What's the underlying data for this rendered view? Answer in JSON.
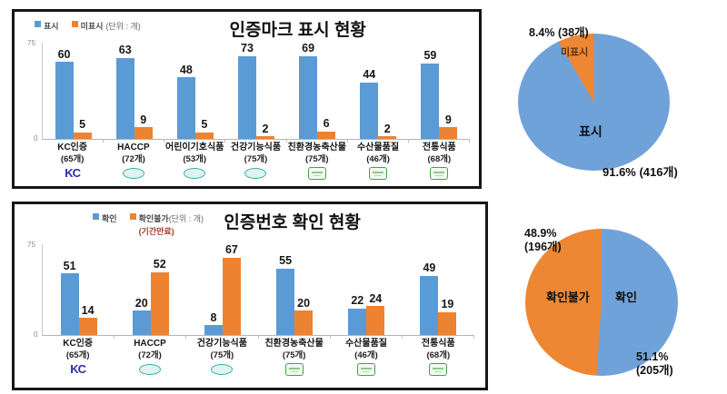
{
  "chart_data": [
    {
      "id": "cert_mark_display_bar",
      "type": "bar",
      "title": "인증마크 표시 현황",
      "unit": "(단위 : 개)",
      "legend_note": "",
      "legend_position": "top-left",
      "grid": false,
      "ylim": [
        0,
        75
      ],
      "y_ticks": [
        "75",
        "0"
      ],
      "categories": [
        "KC인증",
        "HACCP",
        "어린이기호식품",
        "건강기능식품",
        "친환경농축산물",
        "수산물품질",
        "전통식품"
      ],
      "category_counts": [
        "(65개)",
        "(72개)",
        "(53개)",
        "(75개)",
        "(75개)",
        "(46개)",
        "(68개)"
      ],
      "category_icons": [
        "kc",
        "oval",
        "oval",
        "oval",
        "square",
        "square",
        "square"
      ],
      "series": [
        {
          "name": "표시",
          "color": "#5b9bd5",
          "values": [
            60,
            63,
            48,
            73,
            69,
            44,
            59
          ]
        },
        {
          "name": "미표시",
          "color": "#ed8330",
          "values": [
            5,
            9,
            5,
            2,
            6,
            2,
            9
          ]
        }
      ]
    },
    {
      "id": "cert_mark_display_pie",
      "type": "pie",
      "slices": [
        {
          "name": "표시",
          "pct": 91.6,
          "count": 416,
          "callout": "91.6% (416개)",
          "color": "#6fa2d9"
        },
        {
          "name": "미표시",
          "pct": 8.4,
          "count": 38,
          "callout": "8.4% (38개)",
          "color": "#ed8733"
        }
      ]
    },
    {
      "id": "cert_number_check_bar",
      "type": "bar",
      "title": "인증번호 확인 현황",
      "unit": "(단위 : 개)",
      "legend_note": "(기간만료)",
      "legend_position": "top-left",
      "grid": false,
      "ylim": [
        0,
        75
      ],
      "y_ticks": [
        "75",
        "0"
      ],
      "categories": [
        "KC인증",
        "HACCP",
        "건강기능식품",
        "친환경농축산물",
        "수산물품질",
        "전통식품"
      ],
      "category_counts": [
        "(65개)",
        "(72개)",
        "(75개)",
        "(75개)",
        "(46개)",
        "(68개)"
      ],
      "category_icons": [
        "kc",
        "oval",
        "oval",
        "square",
        "square",
        "square"
      ],
      "series": [
        {
          "name": "확인",
          "color": "#5b9bd5",
          "values": [
            51,
            20,
            8,
            55,
            22,
            49
          ]
        },
        {
          "name": "확인불가",
          "color": "#ed8330",
          "values": [
            14,
            52,
            67,
            20,
            24,
            19
          ]
        }
      ]
    },
    {
      "id": "cert_number_check_pie",
      "type": "pie",
      "slices": [
        {
          "name": "확인",
          "pct": 51.1,
          "count": 205,
          "callout_line1": "51.1%",
          "callout_line2": "(205개)",
          "color": "#6fa2d9"
        },
        {
          "name": "확인불가",
          "pct": 48.9,
          "count": 196,
          "callout_line1": "48.9%",
          "callout_line2": "(196개)",
          "color": "#ed8733"
        }
      ]
    }
  ]
}
